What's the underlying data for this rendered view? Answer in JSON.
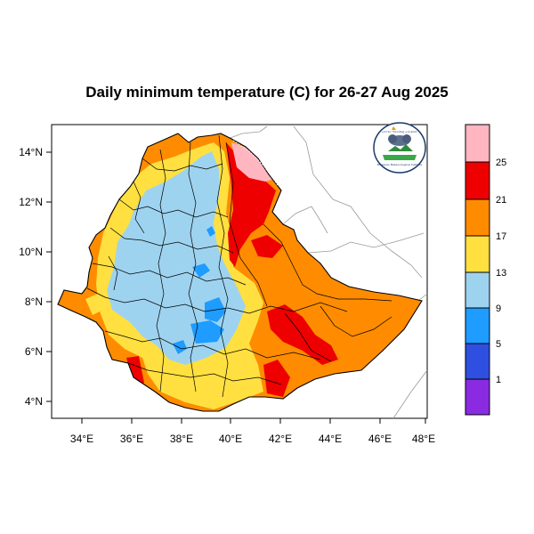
{
  "title": "Daily minimum temperature (C) for 26-27 Aug 2025",
  "axes": {
    "lon_ticks": [
      "34°E",
      "36°E",
      "38°E",
      "40°E",
      "42°E",
      "44°E",
      "46°E",
      "48°E"
    ],
    "lat_ticks": [
      "14°N",
      "12°N",
      "10°N",
      "8°N",
      "6°N",
      "4°N"
    ]
  },
  "colorbar": {
    "labels": [
      "25",
      "21",
      "17",
      "13",
      "9",
      "5",
      "1"
    ],
    "colors": [
      "#ffb6c1",
      "#ee0000",
      "#ff8c00",
      "#ffe040",
      "#9ed3f0",
      "#1e9cff",
      "#2e4fe0",
      "#8a2be2"
    ]
  },
  "logo": {
    "text_top": "ኢትዮጵያ ሚቲዎሮሎጂ ኢንስቲትዩት",
    "text_bottom": "Ethiopian Meteorological Institute"
  },
  "colors": {
    "frame": "#000000",
    "boundary": "#000000",
    "neighbor_border": "#999999",
    "coast": "#999999"
  }
}
